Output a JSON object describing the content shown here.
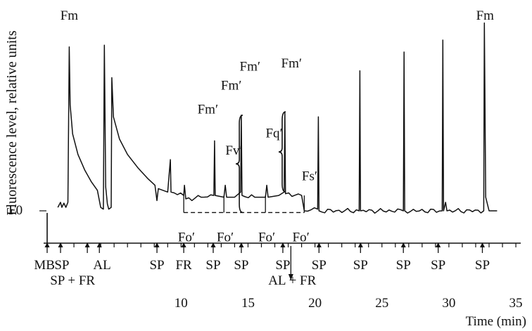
{
  "chart_data": {
    "type": "line",
    "title": "",
    "ylabel": "Fluorescence level, relative units",
    "xlabel": "Time (min)",
    "xlim": [
      0,
      35
    ],
    "ylim": [
      0,
      1
    ],
    "x_ticks": [
      10,
      15,
      20,
      25,
      30,
      35
    ],
    "y_tick_label": "F0",
    "series": [
      {
        "values": [
          [
            0.8,
            0.02
          ],
          [
            1.0,
            0.05
          ],
          [
            1.1,
            0.02
          ],
          [
            1.25,
            0.045
          ],
          [
            1.4,
            0.02
          ],
          [
            1.55,
            0.05
          ],
          [
            1.65,
            0.96
          ],
          [
            1.72,
            0.62
          ],
          [
            1.9,
            0.45
          ],
          [
            2.3,
            0.33
          ],
          [
            2.8,
            0.24
          ],
          [
            3.3,
            0.17
          ],
          [
            3.75,
            0.12
          ],
          [
            4.0,
            0.02
          ],
          [
            4.2,
            0.01
          ],
          [
            4.27,
            0.97
          ],
          [
            4.37,
            0.14
          ],
          [
            4.5,
            0.04
          ],
          [
            4.6,
            0.01
          ],
          [
            4.78,
            0.02
          ],
          [
            4.83,
            0.78
          ],
          [
            4.95,
            0.55
          ],
          [
            5.4,
            0.42
          ],
          [
            6.0,
            0.33
          ],
          [
            6.8,
            0.25
          ],
          [
            7.5,
            0.19
          ],
          [
            8.05,
            0.15
          ],
          [
            8.2,
            0.06
          ],
          [
            8.3,
            0.13
          ],
          [
            9.0,
            0.11
          ],
          [
            9.2,
            0.3
          ],
          [
            9.25,
            0.11
          ],
          [
            10.2,
            0.09
          ],
          [
            10.25,
            0.15
          ],
          [
            10.35,
            0.07
          ],
          [
            11.5,
            0.08
          ],
          [
            12.45,
            0.09
          ],
          [
            12.5,
            0.41
          ],
          [
            12.55,
            0.09
          ],
          [
            13.2,
            0.08
          ],
          [
            13.3,
            0.15
          ],
          [
            13.4,
            0.08
          ],
          [
            14.0,
            0.08
          ],
          [
            14.45,
            0.11
          ],
          [
            14.5,
            0.56
          ],
          [
            14.55,
            0.09
          ],
          [
            15.5,
            0.08
          ],
          [
            16.3,
            0.08
          ],
          [
            16.4,
            0.15
          ],
          [
            16.5,
            0.08
          ],
          [
            17.3,
            0.09
          ],
          [
            17.7,
            0.11
          ],
          [
            17.75,
            0.58
          ],
          [
            17.8,
            0.1
          ],
          [
            19.0,
            0.09
          ],
          [
            19.2,
            0.0
          ],
          [
            20.2,
            0.01
          ],
          [
            20.25,
            0.55
          ],
          [
            20.3,
            0.0
          ],
          [
            23.3,
            0.0
          ],
          [
            23.35,
            0.82
          ],
          [
            23.4,
            0.0
          ],
          [
            26.6,
            0.0
          ],
          [
            26.65,
            0.93
          ],
          [
            26.7,
            0.0
          ],
          [
            29.5,
            0.0
          ],
          [
            29.55,
            1.0
          ],
          [
            29.6,
            0.0
          ],
          [
            29.75,
            0.05
          ],
          [
            29.85,
            0.0
          ],
          [
            32.6,
            0.0
          ],
          [
            32.65,
            1.1
          ],
          [
            32.75,
            0.08
          ],
          [
            33.0,
            0.0
          ],
          [
            33.6,
            0.0
          ]
        ]
      }
    ],
    "dashed_baseline": {
      "x": [
        10.2,
        19.2
      ],
      "y": -0.01
    },
    "peak_labels": [
      {
        "text": "Fm",
        "x": 1.65,
        "y": 1.12
      },
      {
        "text": "Fm′",
        "x": 12.0,
        "y": 0.57
      },
      {
        "text": "Fm′",
        "x": 13.75,
        "y": 0.71
      },
      {
        "text": "Fm′",
        "x": 15.15,
        "y": 0.82
      },
      {
        "text": "Fm′",
        "x": 18.25,
        "y": 0.84
      },
      {
        "text": "Fm",
        "x": 32.7,
        "y": 1.12
      }
    ],
    "parameter_labels": [
      {
        "text": "Fv′",
        "x": 13.95,
        "y": 0.33
      },
      {
        "text": "Fq′",
        "x": 16.95,
        "y": 0.43
      },
      {
        "text": "Fs′",
        "x": 19.6,
        "y": 0.18
      }
    ],
    "baseline_labels": [
      {
        "text": "Fo′",
        "x": 10.4,
        "y": -0.18
      },
      {
        "text": "Fo′",
        "x": 13.3,
        "y": -0.18
      },
      {
        "text": "Fo′",
        "x": 16.4,
        "y": -0.18
      },
      {
        "text": "Fo′",
        "x": 18.95,
        "y": -0.18
      }
    ],
    "events": [
      {
        "x": 0.0,
        "label": "MB",
        "label_x": -0.2,
        "line": 1
      },
      {
        "x": 1.0,
        "label": "SP",
        "label_x": 1.1,
        "line": 1
      },
      {
        "x": 3.0,
        "label": "SP + FR",
        "label_x": 1.9,
        "line": 2
      },
      {
        "x": 3.9,
        "label": "AL",
        "label_x": 4.1,
        "line": 1
      },
      {
        "x": 8.2,
        "label": "SP",
        "label_x": 8.2,
        "line": 1
      },
      {
        "x": 10.2,
        "label": "FR",
        "label_x": 10.2,
        "line": 1
      },
      {
        "x": 12.4,
        "label": "SP",
        "label_x": 12.4,
        "line": 1
      },
      {
        "x": 14.5,
        "label": "SP",
        "label_x": 14.5,
        "line": 1
      },
      {
        "x": 17.6,
        "label": "SP",
        "label_x": 17.6,
        "line": 1
      },
      {
        "x": 18.2,
        "label": "AL + FR",
        "label_x": 18.3,
        "line": 2,
        "down": true
      },
      {
        "x": 20.3,
        "label": "SP",
        "label_x": 20.3,
        "line": 1
      },
      {
        "x": 23.4,
        "label": "SP",
        "label_x": 23.4,
        "line": 1
      },
      {
        "x": 26.6,
        "label": "SP",
        "label_x": 26.6,
        "line": 1
      },
      {
        "x": 29.2,
        "label": "SP",
        "label_x": 29.2,
        "line": 1
      },
      {
        "x": 32.5,
        "label": "SP",
        "label_x": 32.5,
        "line": 1
      }
    ]
  }
}
